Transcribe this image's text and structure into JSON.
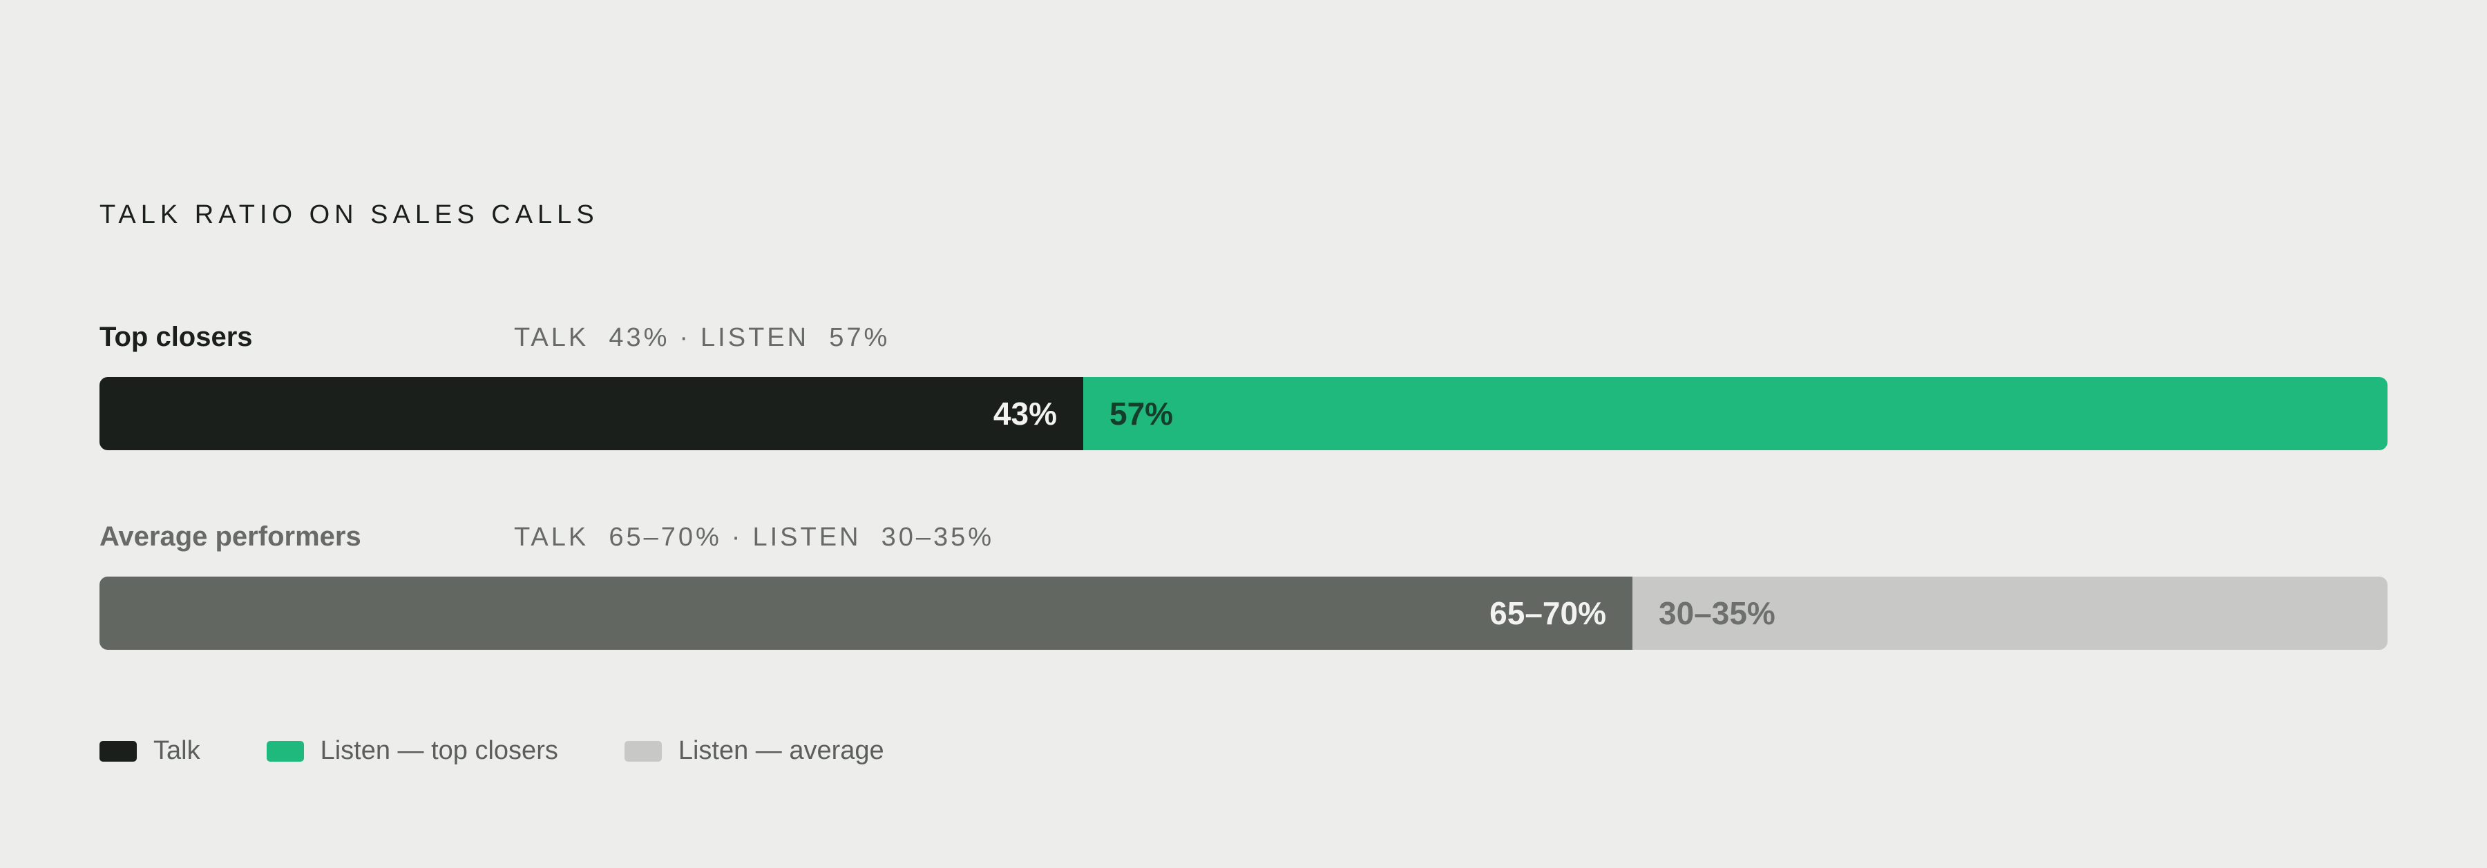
{
  "title": "TALK RATIO ON SALES CALLS",
  "colors": {
    "talk_top": "#1b1f1c",
    "listen_top": "#1fb97e",
    "talk_avg": "#636762",
    "listen_avg": "#c8c9c7",
    "label_top": "#1b1f1c",
    "label_avg": "#676a66"
  },
  "rows": [
    {
      "label": "Top closers",
      "meta_talk": "TALK  43%",
      "meta_sep": "·",
      "meta_listen": "LISTEN  57%",
      "talk_text": "43%",
      "listen_text": "57%"
    },
    {
      "label": "Average performers",
      "meta_talk": "TALK  65–70%",
      "meta_sep": "·",
      "meta_listen": "LISTEN  30–35%",
      "talk_text": "65–70%",
      "listen_text": "30–35%"
    }
  ],
  "legend": [
    {
      "label": "Talk",
      "color": "#1b1f1c"
    },
    {
      "label": "Listen — top closers",
      "color": "#1fb97e"
    },
    {
      "label": "Listen — average",
      "color": "#c8c9c7"
    }
  ],
  "chart_data": {
    "type": "bar",
    "stacked": true,
    "orientation": "horizontal",
    "title": "TALK RATIO ON SALES CALLS",
    "categories": [
      "Top closers",
      "Average performers"
    ],
    "series": [
      {
        "name": "Talk",
        "values": [
          43,
          67
        ]
      },
      {
        "name": "Listen",
        "values": [
          57,
          33
        ]
      }
    ],
    "value_labels": [
      [
        "43%",
        "57%"
      ],
      [
        "65–70%",
        "30–35%"
      ]
    ],
    "xlim": [
      0,
      100
    ],
    "grid": false,
    "legend_position": "bottom-left"
  }
}
